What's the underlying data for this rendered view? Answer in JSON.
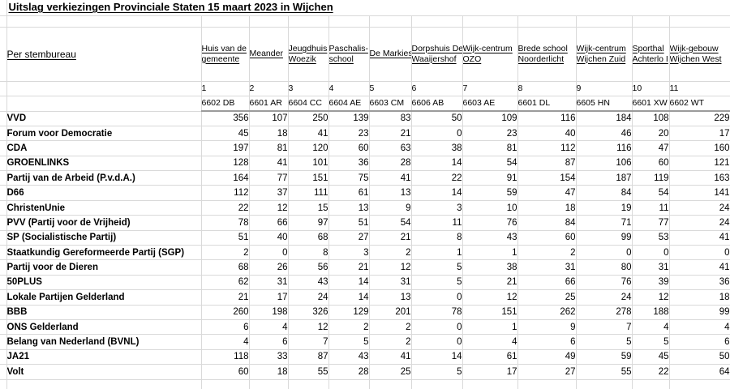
{
  "title": "Uitslag verkiezingen Provinciale Staten 15 maart 2023 in Wijchen",
  "sheet": {
    "row_label_header": "Per stembureau",
    "stations": [
      {
        "name": "Huis van de gemeente",
        "name_lines": [
          "Huis van de",
          "gemeente"
        ],
        "number": "1",
        "postcode": "6602 DB"
      },
      {
        "name": "Meander",
        "name_lines": [
          "Meander"
        ],
        "number": "2",
        "postcode": "6601 AR"
      },
      {
        "name": "Jeugdhuis Woezik",
        "name_lines": [
          "Jeugdhuis",
          "Woezik"
        ],
        "number": "3",
        "postcode": "6604 CC"
      },
      {
        "name": "Paschalis-school",
        "name_lines": [
          "Paschalis-",
          "school"
        ],
        "number": "4",
        "postcode": "6604 AE"
      },
      {
        "name": "De Markies",
        "name_lines": [
          "De Markies"
        ],
        "number": "5",
        "postcode": "6603 CM"
      },
      {
        "name": "Dorpshuis De Waaijershof",
        "name_lines": [
          "Dorpshuis De",
          "Waaijershof"
        ],
        "number": "6",
        "postcode": "6606 AB"
      },
      {
        "name": "Wijk-centrum OZO",
        "name_lines": [
          "Wijk-centrum",
          "OZO"
        ],
        "number": "7",
        "postcode": "6603 AE"
      },
      {
        "name": "Brede school Noorderlicht",
        "name_lines": [
          "Brede school",
          "Noorderlicht"
        ],
        "number": "8",
        "postcode": "6601 DL"
      },
      {
        "name": "Wijk-centrum Wijchen Zuid",
        "name_lines": [
          "Wijk-centrum",
          "Wijchen Zuid"
        ],
        "number": "9",
        "postcode": "6605 HN"
      },
      {
        "name": "Sporthal Achterlo I",
        "name_lines": [
          "Sporthal",
          "Achterlo I"
        ],
        "number": "10",
        "postcode": "6601 XW"
      },
      {
        "name": "Wijk-gebouw Wijchen West",
        "name_lines": [
          "Wijk-gebouw",
          "Wijchen West"
        ],
        "number": "11",
        "postcode": "6602 WT"
      }
    ],
    "parties": [
      {
        "name": "VVD",
        "votes": [
          356,
          107,
          250,
          139,
          83,
          50,
          109,
          116,
          184,
          108,
          229
        ]
      },
      {
        "name": "Forum voor Democratie",
        "votes": [
          45,
          18,
          41,
          23,
          21,
          0,
          23,
          40,
          46,
          20,
          17
        ]
      },
      {
        "name": "CDA",
        "votes": [
          197,
          81,
          120,
          60,
          63,
          38,
          81,
          112,
          116,
          47,
          160
        ]
      },
      {
        "name": "GROENLINKS",
        "votes": [
          128,
          41,
          101,
          36,
          28,
          14,
          54,
          87,
          106,
          60,
          121
        ]
      },
      {
        "name": "Partij van de Arbeid (P.v.d.A.)",
        "votes": [
          164,
          77,
          151,
          75,
          41,
          22,
          91,
          154,
          187,
          119,
          163
        ]
      },
      {
        "name": "D66",
        "votes": [
          112,
          37,
          111,
          61,
          13,
          14,
          59,
          47,
          84,
          54,
          141
        ]
      },
      {
        "name": "ChristenUnie",
        "votes": [
          22,
          12,
          15,
          13,
          9,
          3,
          10,
          18,
          19,
          11,
          24
        ]
      },
      {
        "name": "PVV (Partij voor de Vrijheid)",
        "votes": [
          78,
          66,
          97,
          51,
          54,
          11,
          76,
          84,
          71,
          77,
          24
        ]
      },
      {
        "name": "SP (Socialistische Partij)",
        "votes": [
          51,
          40,
          68,
          27,
          21,
          8,
          43,
          60,
          99,
          53,
          41
        ]
      },
      {
        "name": "Staatkundig Gereformeerde Partij (SGP)",
        "votes": [
          2,
          0,
          8,
          3,
          2,
          1,
          1,
          2,
          0,
          0,
          0
        ]
      },
      {
        "name": "Partij voor de Dieren",
        "votes": [
          68,
          26,
          56,
          21,
          12,
          5,
          38,
          31,
          80,
          31,
          41
        ]
      },
      {
        "name": "50PLUS",
        "votes": [
          62,
          31,
          43,
          14,
          31,
          5,
          21,
          66,
          76,
          39,
          36
        ]
      },
      {
        "name": "Lokale Partijen Gelderland",
        "votes": [
          21,
          17,
          24,
          14,
          13,
          0,
          12,
          25,
          24,
          12,
          18
        ]
      },
      {
        "name": "BBB",
        "votes": [
          260,
          198,
          326,
          129,
          201,
          78,
          151,
          262,
          278,
          188,
          99
        ]
      },
      {
        "name": "ONS Gelderland",
        "votes": [
          6,
          4,
          12,
          2,
          2,
          0,
          1,
          9,
          7,
          4,
          4
        ]
      },
      {
        "name": "Belang van Nederland (BVNL)",
        "votes": [
          4,
          6,
          7,
          5,
          2,
          0,
          4,
          6,
          5,
          5,
          6
        ]
      },
      {
        "name": "JA21",
        "votes": [
          118,
          33,
          87,
          43,
          41,
          14,
          61,
          49,
          59,
          45,
          50
        ]
      },
      {
        "name": "Volt",
        "votes": [
          60,
          18,
          55,
          28,
          25,
          5,
          17,
          27,
          55,
          22,
          64
        ]
      }
    ]
  }
}
